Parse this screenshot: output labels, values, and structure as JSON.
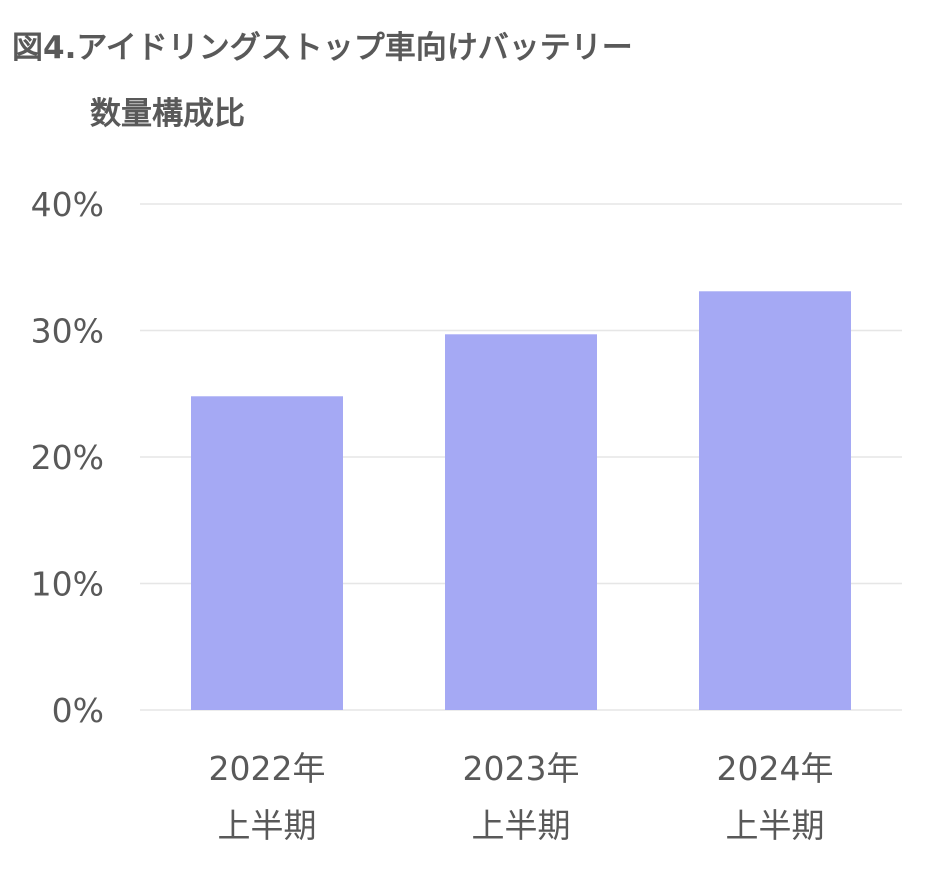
{
  "title_line1": "図4.アイドリングストップ車向けバッテリー",
  "title_line2": "数量構成比",
  "chart_data": {
    "type": "bar",
    "title": "図4.アイドリングストップ車向けバッテリー 数量構成比",
    "categories": [
      [
        "2022年",
        "上半期"
      ],
      [
        "2023年",
        "上半期"
      ],
      [
        "2024年",
        "上半期"
      ]
    ],
    "values": [
      24.8,
      29.7,
      33.1
    ],
    "unit": "%",
    "ylim": [
      0,
      40
    ],
    "yticks": [
      "0%",
      "10%",
      "20%",
      "30%",
      "40%"
    ],
    "ytick_values": [
      0,
      10,
      20,
      30,
      40
    ],
    "grid": true,
    "bar_color": "#a5a9f4",
    "grid_color": "#e6e6e6"
  }
}
